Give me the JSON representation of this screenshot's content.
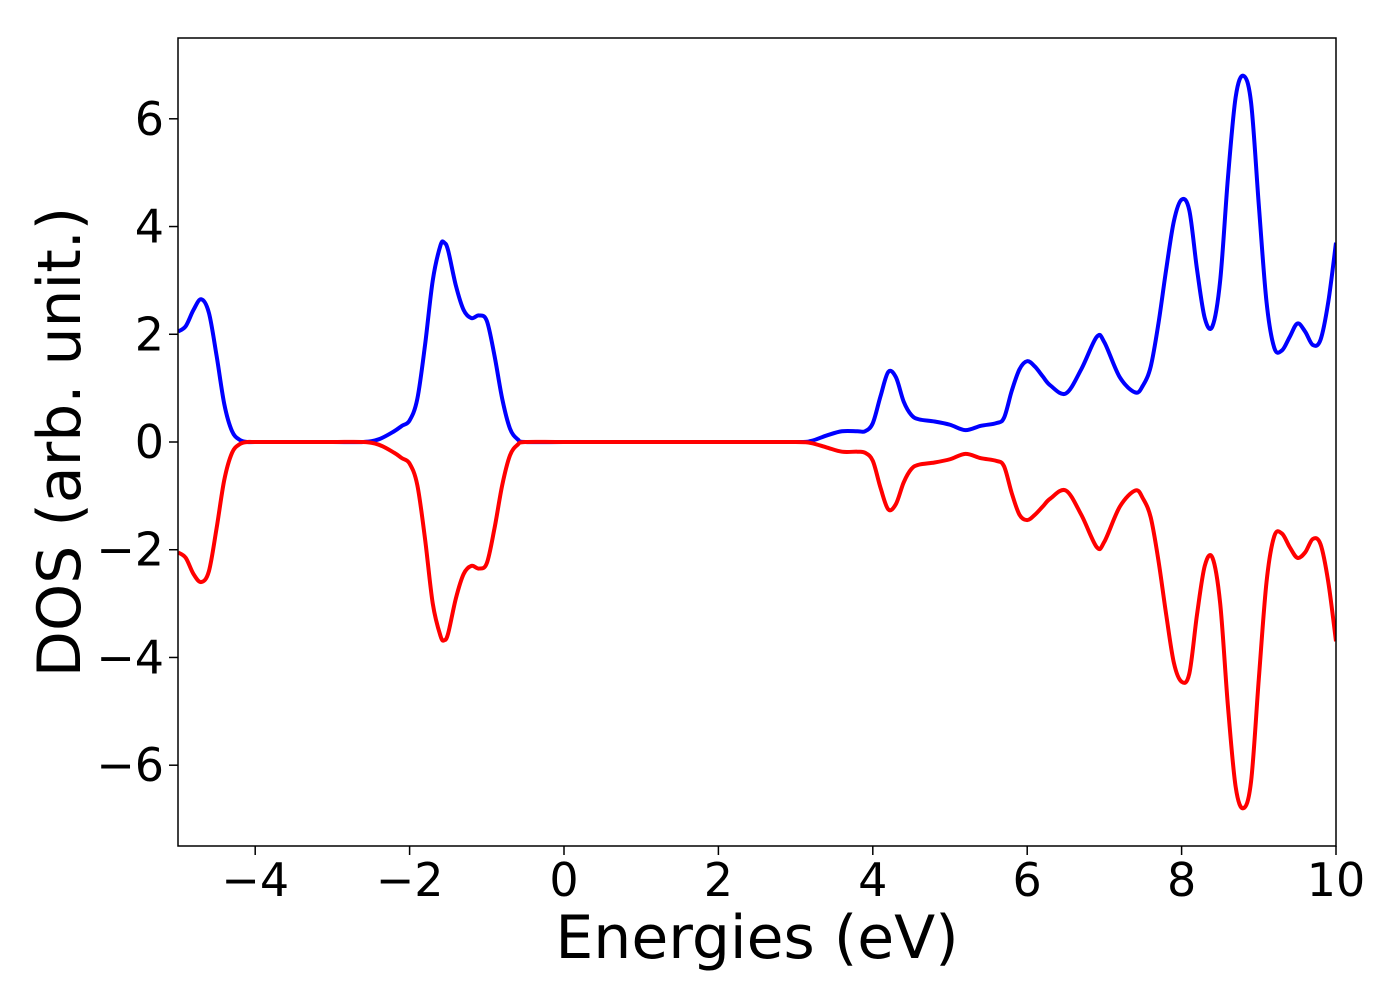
{
  "chart_data": {
    "type": "line",
    "title": "",
    "xlabel": "Energies (eV)",
    "ylabel": "DOS (arb. unit.)",
    "xlim": [
      -5,
      10
    ],
    "ylim": [
      -7.5,
      7.5
    ],
    "xticks": [
      -4,
      -2,
      0,
      2,
      4,
      6,
      8,
      10
    ],
    "yticks": [
      -6,
      -4,
      -2,
      0,
      2,
      4,
      6
    ],
    "xtick_labels": [
      "−4",
      "−2",
      "0",
      "2",
      "4",
      "6",
      "8",
      "10"
    ],
    "ytick_labels": [
      "−6",
      "−4",
      "−2",
      "0",
      "2",
      "4",
      "6"
    ],
    "grid": false,
    "legend": "none",
    "series": [
      {
        "color": "#0000ff",
        "x": [
          -5.0,
          -4.9,
          -4.8,
          -4.7,
          -4.6,
          -4.5,
          -4.4,
          -4.3,
          -4.2,
          -4.1,
          -4.0,
          -3.5,
          -3.0,
          -2.6,
          -2.4,
          -2.2,
          -2.1,
          -2.0,
          -1.9,
          -1.8,
          -1.7,
          -1.6,
          -1.55,
          -1.5,
          -1.4,
          -1.3,
          -1.2,
          -1.1,
          -1.0,
          -0.9,
          -0.8,
          -0.7,
          -0.6,
          -0.5,
          0.0,
          1.0,
          2.0,
          3.0,
          3.2,
          3.4,
          3.6,
          3.8,
          3.9,
          4.0,
          4.1,
          4.2,
          4.3,
          4.4,
          4.5,
          4.6,
          4.8,
          5.0,
          5.2,
          5.4,
          5.6,
          5.7,
          5.8,
          5.9,
          6.0,
          6.1,
          6.2,
          6.3,
          6.5,
          6.7,
          6.9,
          7.0,
          7.2,
          7.4,
          7.5,
          7.6,
          7.7,
          7.8,
          7.9,
          8.0,
          8.1,
          8.2,
          8.3,
          8.4,
          8.5,
          8.6,
          8.7,
          8.8,
          8.9,
          9.0,
          9.1,
          9.2,
          9.3,
          9.4,
          9.5,
          9.6,
          9.7,
          9.8,
          9.9,
          10.0
        ],
        "y": [
          2.05,
          2.15,
          2.45,
          2.65,
          2.4,
          1.6,
          0.7,
          0.2,
          0.04,
          0.0,
          0.0,
          0.0,
          0.0,
          0.0,
          0.05,
          0.2,
          0.3,
          0.4,
          0.8,
          1.8,
          3.0,
          3.65,
          3.7,
          3.55,
          2.9,
          2.45,
          2.3,
          2.35,
          2.25,
          1.6,
          0.8,
          0.25,
          0.05,
          0.0,
          0.0,
          0.0,
          0.0,
          0.0,
          0.02,
          0.12,
          0.2,
          0.2,
          0.2,
          0.35,
          0.85,
          1.3,
          1.2,
          0.75,
          0.5,
          0.42,
          0.38,
          0.32,
          0.22,
          0.3,
          0.35,
          0.45,
          0.95,
          1.35,
          1.5,
          1.4,
          1.22,
          1.05,
          0.9,
          1.35,
          1.95,
          1.85,
          1.2,
          0.92,
          1.05,
          1.4,
          2.2,
          3.2,
          4.1,
          4.5,
          4.3,
          3.2,
          2.3,
          2.15,
          3.0,
          4.9,
          6.4,
          6.8,
          6.3,
          4.4,
          2.6,
          1.75,
          1.7,
          1.95,
          2.2,
          2.05,
          1.8,
          1.9,
          2.6,
          3.7
        ]
      },
      {
        "color": "#ff0000",
        "x": [
          -5.0,
          -4.9,
          -4.8,
          -4.7,
          -4.6,
          -4.5,
          -4.4,
          -4.3,
          -4.2,
          -4.1,
          -4.0,
          -3.5,
          -3.0,
          -2.6,
          -2.4,
          -2.2,
          -2.1,
          -2.0,
          -1.9,
          -1.8,
          -1.7,
          -1.6,
          -1.55,
          -1.5,
          -1.4,
          -1.3,
          -1.2,
          -1.1,
          -1.0,
          -0.9,
          -0.8,
          -0.7,
          -0.6,
          -0.5,
          0.0,
          1.0,
          2.0,
          3.0,
          3.2,
          3.4,
          3.6,
          3.8,
          3.9,
          4.0,
          4.1,
          4.2,
          4.3,
          4.4,
          4.5,
          4.6,
          4.8,
          5.0,
          5.2,
          5.4,
          5.6,
          5.7,
          5.8,
          5.9,
          6.0,
          6.1,
          6.2,
          6.3,
          6.5,
          6.7,
          6.9,
          7.0,
          7.2,
          7.4,
          7.5,
          7.6,
          7.7,
          7.8,
          7.9,
          8.0,
          8.1,
          8.2,
          8.3,
          8.4,
          8.5,
          8.6,
          8.7,
          8.8,
          8.9,
          9.0,
          9.1,
          9.2,
          9.3,
          9.4,
          9.5,
          9.6,
          9.7,
          9.8,
          9.9,
          10.0
        ],
        "y": [
          -2.05,
          -2.15,
          -2.45,
          -2.6,
          -2.4,
          -1.6,
          -0.7,
          -0.2,
          -0.04,
          0.0,
          0.0,
          0.0,
          0.0,
          0.0,
          -0.05,
          -0.2,
          -0.3,
          -0.4,
          -0.8,
          -1.8,
          -3.0,
          -3.6,
          -3.68,
          -3.55,
          -2.9,
          -2.45,
          -2.3,
          -2.35,
          -2.25,
          -1.6,
          -0.8,
          -0.25,
          -0.05,
          0.0,
          0.0,
          0.0,
          0.0,
          0.0,
          -0.02,
          -0.1,
          -0.18,
          -0.18,
          -0.2,
          -0.35,
          -0.85,
          -1.25,
          -1.15,
          -0.75,
          -0.5,
          -0.42,
          -0.38,
          -0.32,
          -0.22,
          -0.3,
          -0.35,
          -0.45,
          -0.95,
          -1.35,
          -1.45,
          -1.35,
          -1.2,
          -1.05,
          -0.9,
          -1.35,
          -1.95,
          -1.85,
          -1.2,
          -0.9,
          -1.05,
          -1.4,
          -2.2,
          -3.2,
          -4.1,
          -4.45,
          -4.3,
          -3.2,
          -2.3,
          -2.15,
          -3.0,
          -4.9,
          -6.4,
          -6.8,
          -6.3,
          -4.4,
          -2.6,
          -1.75,
          -1.7,
          -1.95,
          -2.15,
          -2.05,
          -1.8,
          -1.9,
          -2.6,
          -3.7
        ]
      }
    ]
  }
}
